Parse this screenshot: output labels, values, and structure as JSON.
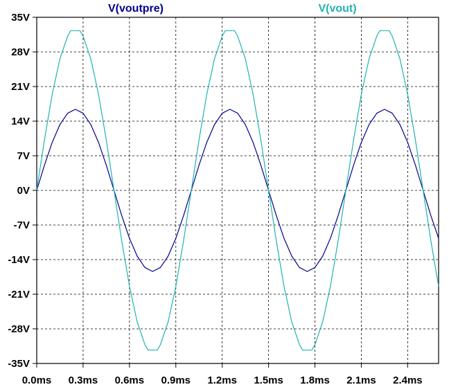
{
  "chart_data": {
    "type": "line",
    "title": "",
    "xlabel": "",
    "ylabel": "",
    "xlim": [
      0,
      2.6
    ],
    "ylim": [
      -35,
      35
    ],
    "grid": true,
    "grid_style": "dashed",
    "x_ticks": [
      {
        "value": 0.0,
        "label": "0.0ms"
      },
      {
        "value": 0.3,
        "label": "0.3ms"
      },
      {
        "value": 0.6,
        "label": "0.6ms"
      },
      {
        "value": 0.9,
        "label": "0.9ms"
      },
      {
        "value": 1.2,
        "label": "1.2ms"
      },
      {
        "value": 1.5,
        "label": "1.5ms"
      },
      {
        "value": 1.8,
        "label": "1.8ms"
      },
      {
        "value": 2.1,
        "label": "2.1ms"
      },
      {
        "value": 2.4,
        "label": "2.4ms"
      }
    ],
    "y_ticks": [
      {
        "value": 35,
        "label": "35V"
      },
      {
        "value": 28,
        "label": "28V"
      },
      {
        "value": 21,
        "label": "21V"
      },
      {
        "value": 14,
        "label": "14V"
      },
      {
        "value": 7,
        "label": "7V"
      },
      {
        "value": 0,
        "label": "0V"
      },
      {
        "value": -7,
        "label": "-7V"
      },
      {
        "value": -14,
        "label": "-14V"
      },
      {
        "value": -21,
        "label": "-21V"
      },
      {
        "value": -28,
        "label": "-28V"
      },
      {
        "value": -35,
        "label": "-35V"
      }
    ],
    "series": [
      {
        "name": "V(voutpre)",
        "color": "#00008b",
        "x": [
          0.0,
          0.05,
          0.1,
          0.15,
          0.2,
          0.25,
          0.3,
          0.35,
          0.4,
          0.45,
          0.5,
          0.55,
          0.6,
          0.65,
          0.7,
          0.75,
          0.8,
          0.85,
          0.9,
          0.95,
          1.0,
          1.05,
          1.1,
          1.15,
          1.2,
          1.25,
          1.3,
          1.35,
          1.4,
          1.45,
          1.5,
          1.55,
          1.6,
          1.65,
          1.7,
          1.75,
          1.8,
          1.85,
          1.9,
          1.95,
          2.0,
          2.05,
          2.1,
          2.15,
          2.2,
          2.25,
          2.3,
          2.35,
          2.4,
          2.45,
          2.5,
          2.55,
          2.6
        ],
        "y": [
          0.0,
          5.1,
          9.7,
          13.3,
          15.6,
          16.4,
          15.6,
          13.3,
          9.7,
          5.1,
          0.0,
          -5.1,
          -9.7,
          -13.3,
          -15.6,
          -16.4,
          -15.6,
          -13.3,
          -9.7,
          -5.1,
          0.0,
          5.1,
          9.7,
          13.3,
          15.6,
          16.4,
          15.6,
          13.3,
          9.7,
          5.1,
          0.0,
          -5.1,
          -9.7,
          -13.3,
          -15.6,
          -16.4,
          -15.6,
          -13.3,
          -9.7,
          -5.1,
          0.0,
          5.1,
          9.7,
          13.3,
          15.6,
          16.4,
          15.6,
          13.3,
          9.7,
          5.1,
          0.0,
          -5.1,
          -9.7
        ]
      },
      {
        "name": "V(vout)",
        "color": "#20b2b2",
        "x": [
          0.0,
          0.05,
          0.1,
          0.15,
          0.2,
          0.22,
          0.25,
          0.28,
          0.3,
          0.35,
          0.4,
          0.45,
          0.5,
          0.55,
          0.6,
          0.65,
          0.7,
          0.72,
          0.75,
          0.78,
          0.8,
          0.85,
          0.9,
          0.95,
          1.0,
          1.05,
          1.1,
          1.15,
          1.2,
          1.22,
          1.25,
          1.28,
          1.3,
          1.35,
          1.4,
          1.45,
          1.5,
          1.55,
          1.6,
          1.65,
          1.7,
          1.72,
          1.75,
          1.78,
          1.8,
          1.85,
          1.9,
          1.95,
          2.0,
          2.05,
          2.1,
          2.15,
          2.2,
          2.22,
          2.25,
          2.28,
          2.3,
          2.35,
          2.4,
          2.45,
          2.5,
          2.55,
          2.6
        ],
        "y": [
          0.0,
          10.2,
          19.4,
          26.6,
          31.2,
          32.3,
          32.3,
          32.3,
          31.2,
          26.6,
          19.4,
          10.2,
          0.0,
          -10.2,
          -19.4,
          -26.6,
          -31.2,
          -32.3,
          -32.3,
          -32.3,
          -31.2,
          -26.6,
          -19.4,
          -10.2,
          0.0,
          10.2,
          19.4,
          26.6,
          31.2,
          32.3,
          32.3,
          32.3,
          31.2,
          26.6,
          19.4,
          10.2,
          0.0,
          -10.2,
          -19.4,
          -26.6,
          -31.2,
          -32.3,
          -32.3,
          -32.3,
          -31.2,
          -26.6,
          -19.4,
          -10.2,
          0.0,
          10.2,
          19.4,
          26.6,
          31.2,
          32.3,
          32.3,
          32.3,
          31.2,
          26.6,
          19.4,
          10.2,
          0.0,
          -10.2,
          -19.4
        ]
      }
    ],
    "legend_placement": "top"
  }
}
